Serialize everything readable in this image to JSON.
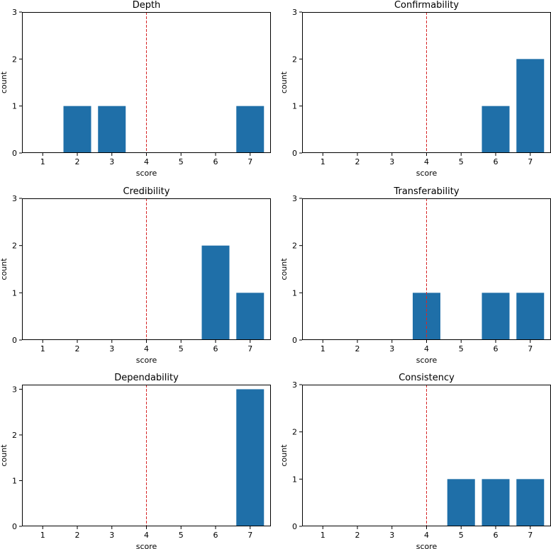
{
  "chart_data": [
    {
      "type": "bar",
      "title": "Depth",
      "xlabel": "score",
      "ylabel": "count",
      "categories": [
        "1",
        "2",
        "3",
        "4",
        "5",
        "6",
        "7"
      ],
      "values": [
        0,
        1,
        1,
        0,
        0,
        0,
        1
      ],
      "ylim": [
        0,
        3
      ],
      "yticks": [
        "0",
        "1",
        "2",
        "3"
      ],
      "reference_line": 4,
      "bar_color": "#1f6fa8",
      "line_color": "#d62728"
    },
    {
      "type": "bar",
      "title": "Confirmability",
      "xlabel": "score",
      "ylabel": "count",
      "categories": [
        "1",
        "2",
        "3",
        "4",
        "5",
        "6",
        "7"
      ],
      "values": [
        0,
        0,
        0,
        0,
        0,
        1,
        2
      ],
      "ylim": [
        0,
        3
      ],
      "yticks": [
        "0",
        "1",
        "2",
        "3"
      ],
      "reference_line": 4,
      "bar_color": "#1f6fa8",
      "line_color": "#d62728"
    },
    {
      "type": "bar",
      "title": "Credibility",
      "xlabel": "score",
      "ylabel": "count",
      "categories": [
        "1",
        "2",
        "3",
        "4",
        "5",
        "6",
        "7"
      ],
      "values": [
        0,
        0,
        0,
        0,
        0,
        2,
        1
      ],
      "ylim": [
        0,
        3
      ],
      "yticks": [
        "0",
        "1",
        "2",
        "3"
      ],
      "reference_line": 4,
      "bar_color": "#1f6fa8",
      "line_color": "#d62728"
    },
    {
      "type": "bar",
      "title": "Transferability",
      "xlabel": "score",
      "ylabel": "count",
      "categories": [
        "1",
        "2",
        "3",
        "4",
        "5",
        "6",
        "7"
      ],
      "values": [
        0,
        0,
        0,
        1,
        0,
        1,
        1
      ],
      "ylim": [
        0,
        3
      ],
      "yticks": [
        "0",
        "1",
        "2",
        "3"
      ],
      "reference_line": 4,
      "bar_color": "#1f6fa8",
      "line_color": "#d62728"
    },
    {
      "type": "bar",
      "title": "Dependability",
      "xlabel": "score",
      "ylabel": "count",
      "categories": [
        "1",
        "2",
        "3",
        "4",
        "5",
        "6",
        "7"
      ],
      "values": [
        0,
        0,
        0,
        0,
        0,
        0,
        3
      ],
      "ylim": [
        0,
        3.1
      ],
      "yticks": [
        "0",
        "1",
        "2",
        "3"
      ],
      "reference_line": 4,
      "bar_color": "#1f6fa8",
      "line_color": "#d62728"
    },
    {
      "type": "bar",
      "title": "Consistency",
      "xlabel": "score",
      "ylabel": "count",
      "categories": [
        "1",
        "2",
        "3",
        "4",
        "5",
        "6",
        "7"
      ],
      "values": [
        0,
        0,
        0,
        0,
        1,
        1,
        1
      ],
      "ylim": [
        0,
        3
      ],
      "yticks": [
        "0",
        "1",
        "2",
        "3"
      ],
      "reference_line": 4,
      "bar_color": "#1f6fa8",
      "line_color": "#d62728"
    }
  ]
}
